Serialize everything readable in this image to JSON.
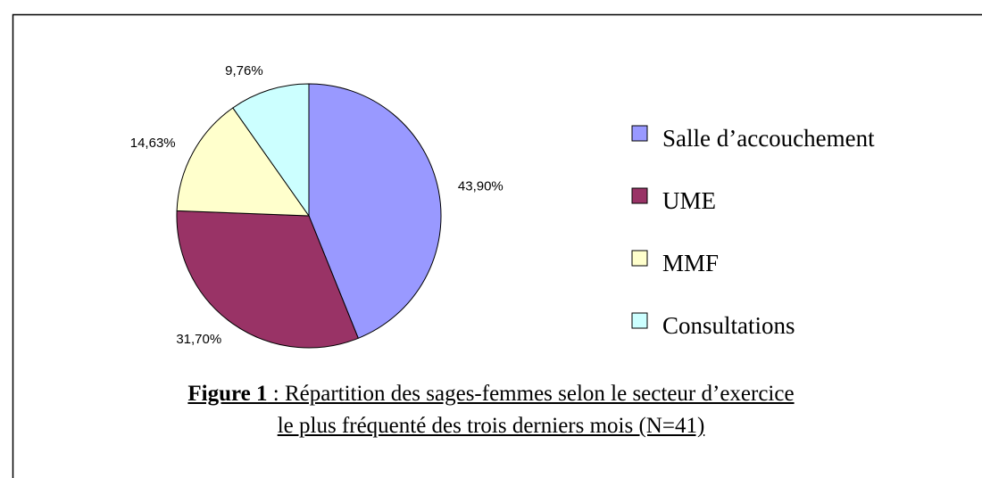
{
  "chart_data": {
    "type": "pie",
    "categories": [
      "Salle d’accouchement",
      "UME",
      "MMF",
      "Consultations"
    ],
    "values": [
      43.9,
      31.7,
      14.63,
      9.76
    ],
    "value_labels": [
      "43,90%",
      "31,70%",
      "14,63%",
      "9,76%"
    ],
    "colors": [
      "#9999ff",
      "#993366",
      "#ffffcc",
      "#ccffff"
    ],
    "legend": "right",
    "figure_label": "Figure 1",
    "title": " : Répartition des sages-femmes selon le secteur d’exercice le plus fréquenté des trois derniers mois (N=41)"
  }
}
